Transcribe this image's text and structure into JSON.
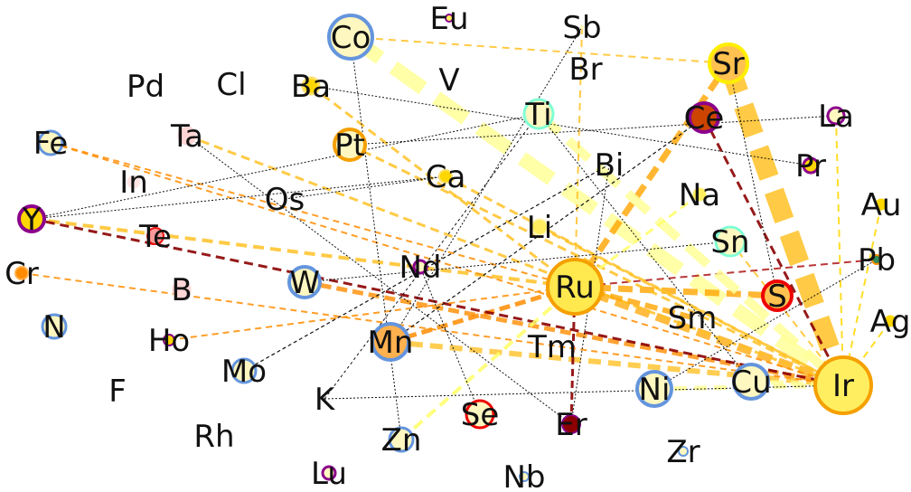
{
  "nodes": [
    {
      "id": "Co",
      "label": "Co",
      "fill": "#fff7c0",
      "stroke": "#6495dd",
      "r": 24,
      "sw": 4
    },
    {
      "id": "Eu",
      "label": "Eu",
      "fill": "#ffef60",
      "stroke": "#8b008b",
      "r": 4,
      "sw": 2
    },
    {
      "id": "Sb",
      "label": "Sb",
      "fill": "#fff7c0",
      "stroke": "#fff7c0",
      "r": 2,
      "sw": 1
    },
    {
      "id": "Sr",
      "label": "Sr",
      "fill": "#ffc14f",
      "stroke": "#ffee00",
      "r": 21,
      "sw": 4
    },
    {
      "id": "Pd",
      "label": "Pd",
      "fill": "none",
      "stroke": "none",
      "r": 0,
      "sw": 0
    },
    {
      "id": "Cl",
      "label": "Cl",
      "fill": "none",
      "stroke": "none",
      "r": 0,
      "sw": 0
    },
    {
      "id": "Ba",
      "label": "Ba",
      "fill": "#ffd700",
      "stroke": "#ffe066",
      "r": 9,
      "sw": 3
    },
    {
      "id": "V",
      "label": "V",
      "fill": "none",
      "stroke": "none",
      "r": 0,
      "sw": 0
    },
    {
      "id": "Br",
      "label": "Br",
      "fill": "none",
      "stroke": "none",
      "r": 0,
      "sw": 0
    },
    {
      "id": "Ti",
      "label": "Ti",
      "fill": "#fff7c0",
      "stroke": "#7fffd4",
      "r": 16,
      "sw": 3
    },
    {
      "id": "Ce",
      "label": "Ce",
      "fill": "#cc4400",
      "stroke": "#8b008b",
      "r": 16,
      "sw": 4
    },
    {
      "id": "La",
      "label": "La",
      "fill": "#fff7c0",
      "stroke": "#8b008b",
      "r": 9,
      "sw": 3
    },
    {
      "id": "Fe",
      "label": "Fe",
      "fill": "#fff7c0",
      "stroke": "#6495dd",
      "r": 13,
      "sw": 3
    },
    {
      "id": "Ta",
      "label": "Ta",
      "fill": "#ffd6d6",
      "stroke": "#ffd6d6",
      "r": 10,
      "sw": 1
    },
    {
      "id": "Pt",
      "label": "Pt",
      "fill": "#fff7c0",
      "stroke": "#f5a000",
      "r": 17,
      "sw": 4
    },
    {
      "id": "In",
      "label": "In",
      "fill": "#ffe4e4",
      "stroke": "#ffe4e4",
      "r": 7,
      "sw": 1
    },
    {
      "id": "Ca",
      "label": "Ca",
      "fill": "#ffd700",
      "stroke": "#ffe066",
      "r": 7,
      "sw": 2
    },
    {
      "id": "Bi",
      "label": "Bi",
      "fill": "none",
      "stroke": "none",
      "r": 0,
      "sw": 0
    },
    {
      "id": "Pr",
      "label": "Pr",
      "fill": "#ffd700",
      "stroke": "#8b008b",
      "r": 8,
      "sw": 3
    },
    {
      "id": "Na",
      "label": "Na",
      "fill": "#ffef60",
      "stroke": "#ffef60",
      "r": 7,
      "sw": 1
    },
    {
      "id": "Au",
      "label": "Au",
      "fill": "#ffd700",
      "stroke": "#ffd700",
      "r": 6,
      "sw": 1
    },
    {
      "id": "Os",
      "label": "Os",
      "fill": "none",
      "stroke": "none",
      "r": 0,
      "sw": 0
    },
    {
      "id": "Y",
      "label": "Y",
      "fill": "#ffd700",
      "stroke": "#8b008b",
      "r": 14,
      "sw": 4
    },
    {
      "id": "Te",
      "label": "Te",
      "fill": "#ff9999",
      "stroke": "#ee1111",
      "r": 9,
      "sw": 2
    },
    {
      "id": "Li",
      "label": "Li",
      "fill": "#ffef60",
      "stroke": "#fff7c0",
      "r": 9,
      "sw": 2
    },
    {
      "id": "Sn",
      "label": "Sn",
      "fill": "#fff7c0",
      "stroke": "#7fffd4",
      "r": 16,
      "sw": 3
    },
    {
      "id": "Pb",
      "label": "Pb",
      "fill": "#2e8b57",
      "stroke": "#ff8c00",
      "r": 5,
      "sw": 2
    },
    {
      "id": "Cr",
      "label": "Cr",
      "fill": "#ff8c00",
      "stroke": "#ffb04f",
      "r": 7,
      "sw": 2
    },
    {
      "id": "B",
      "label": "B",
      "fill": "#ffd6d6",
      "stroke": "#ffd6d6",
      "r": 10,
      "sw": 1
    },
    {
      "id": "W",
      "label": "W",
      "fill": "#fff7c0",
      "stroke": "#6495dd",
      "r": 17,
      "sw": 4
    },
    {
      "id": "Nd",
      "label": "Nd",
      "fill": "#fff7c0",
      "stroke": "#8b008b",
      "r": 7,
      "sw": 3
    },
    {
      "id": "Ru",
      "label": "Ru",
      "fill": "#ffe94f",
      "stroke": "#f5a000",
      "r": 30,
      "sw": 4
    },
    {
      "id": "S",
      "label": "S",
      "fill": "#ffc14f",
      "stroke": "#ee0000",
      "r": 16,
      "sw": 4
    },
    {
      "id": "Ag",
      "label": "Ag",
      "fill": "#ffd700",
      "stroke": "#ffd700",
      "r": 6,
      "sw": 1
    },
    {
      "id": "N",
      "label": "N",
      "fill": "#fff7c0",
      "stroke": "#6495dd",
      "r": 13,
      "sw": 3
    },
    {
      "id": "Ho",
      "label": "Ho",
      "fill": "#ffd700",
      "stroke": "#8b008b",
      "r": 6,
      "sw": 2
    },
    {
      "id": "Mn",
      "label": "Mn",
      "fill": "#ffb04f",
      "stroke": "#6495dd",
      "r": 20,
      "sw": 4
    },
    {
      "id": "Sm",
      "label": "Sm",
      "fill": "none",
      "stroke": "none",
      "r": 0,
      "sw": 0
    },
    {
      "id": "Tm",
      "label": "Tm",
      "fill": "none",
      "stroke": "none",
      "r": 0,
      "sw": 0
    },
    {
      "id": "Mo",
      "label": "Mo",
      "fill": "#fff7c0",
      "stroke": "#6495dd",
      "r": 13,
      "sw": 3
    },
    {
      "id": "F",
      "label": "F",
      "fill": "none",
      "stroke": "none",
      "r": 0,
      "sw": 0
    },
    {
      "id": "K",
      "label": "K",
      "fill": "none",
      "stroke": "none",
      "r": 0,
      "sw": 0
    },
    {
      "id": "Ni",
      "label": "Ni",
      "fill": "#fff7c0",
      "stroke": "#6495dd",
      "r": 19,
      "sw": 4
    },
    {
      "id": "Cu",
      "label": "Cu",
      "fill": "#fff7c0",
      "stroke": "#6495dd",
      "r": 19,
      "sw": 4
    },
    {
      "id": "Ir",
      "label": "Ir",
      "fill": "#ffef60",
      "stroke": "#f5a000",
      "r": 31,
      "sw": 4
    },
    {
      "id": "Se",
      "label": "Se",
      "fill": "#fff7c0",
      "stroke": "#ee0000",
      "r": 15,
      "sw": 3
    },
    {
      "id": "Er",
      "label": "Er",
      "fill": "#8b0000",
      "stroke": "#8b008b",
      "r": 10,
      "sw": 2
    },
    {
      "id": "Rh",
      "label": "Rh",
      "fill": "none",
      "stroke": "none",
      "r": 0,
      "sw": 0
    },
    {
      "id": "Zn",
      "label": "Zn",
      "fill": "#fff7c0",
      "stroke": "#6495dd",
      "r": 13,
      "sw": 3
    },
    {
      "id": "Zr",
      "label": "Zr",
      "fill": "#fff7c0",
      "stroke": "#6495dd",
      "r": 5,
      "sw": 2
    },
    {
      "id": "Lu",
      "label": "Lu",
      "fill": "#fff7c0",
      "stroke": "#8b008b",
      "r": 7,
      "sw": 3
    },
    {
      "id": "Nb",
      "label": "Nb",
      "fill": "#fff7c0",
      "stroke": "#6495dd",
      "r": 5,
      "sw": 2
    }
  ],
  "edges": [
    {
      "s": "Sr",
      "t": "Ir",
      "color": "#ffc125",
      "w": 22,
      "dash": "34 16",
      "op": 0.85
    },
    {
      "s": "Co",
      "t": "Ir",
      "color": "#ffff99",
      "w": 16,
      "dash": "40 18",
      "op": 0.85
    },
    {
      "s": "Ru",
      "t": "Sr",
      "color": "#ffa500",
      "w": 7,
      "dash": "16 8",
      "op": 0.8
    },
    {
      "s": "Ru",
      "t": "S",
      "color": "#ffa500",
      "w": 7,
      "dash": "16 8",
      "op": 0.8
    },
    {
      "s": "Ru",
      "t": "Ir",
      "color": "#ffa500",
      "w": 9,
      "dash": "16 8",
      "op": 0.75
    },
    {
      "s": "Mn",
      "t": "Ir",
      "color": "#ffc125",
      "w": 6,
      "dash": "14 8",
      "op": 0.8
    },
    {
      "s": "Mn",
      "t": "Ru",
      "color": "#ff8c00",
      "w": 5,
      "dash": "12 6",
      "op": 0.85
    },
    {
      "s": "W",
      "t": "Ir",
      "color": "#ff8c00",
      "w": 5,
      "dash": "12 6",
      "op": 0.8
    },
    {
      "s": "Y",
      "t": "Ru",
      "color": "#ffc125",
      "w": 4,
      "dash": "12 7",
      "op": 0.85
    },
    {
      "s": "Y",
      "t": "Ir",
      "color": "#8b0000",
      "w": 3,
      "dash": "10 6",
      "op": 0.9
    },
    {
      "s": "Ce",
      "t": "Ir",
      "color": "#8b0000",
      "w": 3,
      "dash": "10 6",
      "op": 0.9
    },
    {
      "s": "Ru",
      "t": "Er",
      "color": "#8b0000",
      "w": 3,
      "dash": "8 5",
      "op": 0.9
    },
    {
      "s": "Ru",
      "t": "Pb",
      "color": "#b22222",
      "w": 2,
      "dash": "8 5",
      "op": 0.9
    },
    {
      "s": "Ni",
      "t": "Ir",
      "color": "#ffff99",
      "w": 5,
      "dash": "14 8",
      "op": 0.85
    },
    {
      "s": "Cu",
      "t": "Ir",
      "color": "#ffff99",
      "w": 5,
      "dash": "14 8",
      "op": 0.85
    },
    {
      "s": "Ti",
      "t": "Ir",
      "color": "#ffff99",
      "w": 10,
      "dash": "30 14",
      "op": 0.85
    },
    {
      "s": "Pt",
      "t": "Ir",
      "color": "#ffc125",
      "w": 3,
      "dash": "10 6",
      "op": 0.85
    },
    {
      "s": "Fe",
      "t": "Ir",
      "color": "#ff8c00",
      "w": 2,
      "dash": "7 5",
      "op": 0.85
    },
    {
      "s": "Fe",
      "t": "Ru",
      "color": "#ff8c00",
      "w": 2,
      "dash": "7 5",
      "op": 0.85
    },
    {
      "s": "Cr",
      "t": "Ir",
      "color": "#ff8c00",
      "w": 2,
      "dash": "7 5",
      "op": 0.85
    },
    {
      "s": "Ho",
      "t": "Ru",
      "color": "#ff8c00",
      "w": 2,
      "dash": "7 5",
      "op": 0.85
    },
    {
      "s": "Ta",
      "t": "Ir",
      "color": "#ffc125",
      "w": 3,
      "dash": "10 6",
      "op": 0.85
    },
    {
      "s": "Ba",
      "t": "Ru",
      "color": "#ffc125",
      "w": 3,
      "dash": "10 6",
      "op": 0.85
    },
    {
      "s": "Co",
      "t": "Sr",
      "color": "#ffc125",
      "w": 2,
      "dash": "8 6",
      "op": 0.85
    },
    {
      "s": "Sb",
      "t": "Ru",
      "color": "#ffc125",
      "w": 2,
      "dash": "8 6",
      "op": 0.85
    },
    {
      "s": "Au",
      "t": "Ir",
      "color": "#ffd700",
      "w": 2,
      "dash": "8 6",
      "op": 0.85
    },
    {
      "s": "La",
      "t": "Ir",
      "color": "#ffd700",
      "w": 2,
      "dash": "8 6",
      "op": 0.85
    },
    {
      "s": "Na",
      "t": "Ru",
      "color": "#ffff66",
      "w": 3,
      "dash": "10 6",
      "op": 0.85
    },
    {
      "s": "Zn",
      "t": "Ru",
      "color": "#ffff66",
      "w": 4,
      "dash": "12 7",
      "op": 0.85
    },
    {
      "s": "Li",
      "t": "Ir",
      "color": "#ffc125",
      "w": 3,
      "dash": "10 6",
      "op": 0.85
    },
    {
      "s": "Ca",
      "t": "Ir",
      "color": "#ffc125",
      "w": 3,
      "dash": "10 6",
      "op": 0.85
    },
    {
      "s": "Sn",
      "t": "Ir",
      "color": "#ffc125",
      "w": 2,
      "dash": "8 6",
      "op": 0.85
    },
    {
      "s": "Ag",
      "t": "Ir",
      "color": "#ffd700",
      "w": 2,
      "dash": "8 6",
      "op": 0.85
    },
    {
      "s": "Sm",
      "t": "Ru",
      "color": "#ffa500",
      "w": 6,
      "dash": "14 6",
      "op": 0.8
    },
    {
      "s": "Mn",
      "t": "Ce",
      "color": "#111111",
      "w": 1.2,
      "dash": "4 3",
      "op": 1
    },
    {
      "s": "Mo",
      "t": "Bi",
      "color": "#111111",
      "w": 1.2,
      "dash": "4 3",
      "op": 1
    },
    {
      "s": "K",
      "t": "Ti",
      "color": "#111111",
      "w": 1,
      "dash": "3 3",
      "op": 1
    },
    {
      "s": "K",
      "t": "Ir",
      "color": "#111111",
      "w": 1,
      "dash": "2 2",
      "op": 1
    },
    {
      "s": "Co",
      "t": "Zn",
      "color": "#111111",
      "w": 1,
      "dash": "2 2",
      "op": 1
    },
    {
      "s": "Y",
      "t": "Ca",
      "color": "#111111",
      "w": 1,
      "dash": "2 2",
      "op": 1
    },
    {
      "s": "W",
      "t": "Sn",
      "color": "#111111",
      "w": 1,
      "dash": "2 2",
      "op": 1
    },
    {
      "s": "Ba",
      "t": "Pr",
      "color": "#111111",
      "w": 1,
      "dash": "2 2",
      "op": 1
    },
    {
      "s": "Pt",
      "t": "La",
      "color": "#111111",
      "w": 1,
      "dash": "2 2",
      "op": 1
    },
    {
      "s": "Ta",
      "t": "Er",
      "color": "#111111",
      "w": 1,
      "dash": "2 2",
      "op": 1
    },
    {
      "s": "Sr",
      "t": "S",
      "color": "#111111",
      "w": 1,
      "dash": "2 2",
      "op": 1
    },
    {
      "s": "Ni",
      "t": "Pb",
      "color": "#111111",
      "w": 1,
      "dash": "2 2",
      "op": 1
    },
    {
      "s": "Er",
      "t": "Bi",
      "color": "#111111",
      "w": 1,
      "dash": "2 2",
      "op": 1
    },
    {
      "s": "Ti",
      "t": "Cu",
      "color": "#111111",
      "w": 1,
      "dash": "2 2",
      "op": 1
    },
    {
      "s": "Y",
      "t": "Ti",
      "color": "#111111",
      "w": 1,
      "dash": "2 2",
      "op": 1
    },
    {
      "s": "Nd",
      "t": "Se",
      "color": "#111111",
      "w": 1,
      "dash": "2 2",
      "op": 1
    },
    {
      "s": "Mn",
      "t": "Sb",
      "color": "#111111",
      "w": 1,
      "dash": "2 2",
      "op": 1
    },
    {
      "s": "Os",
      "t": "Ca",
      "color": "#111111",
      "w": 1,
      "dash": "2 2",
      "op": 1
    }
  ]
}
